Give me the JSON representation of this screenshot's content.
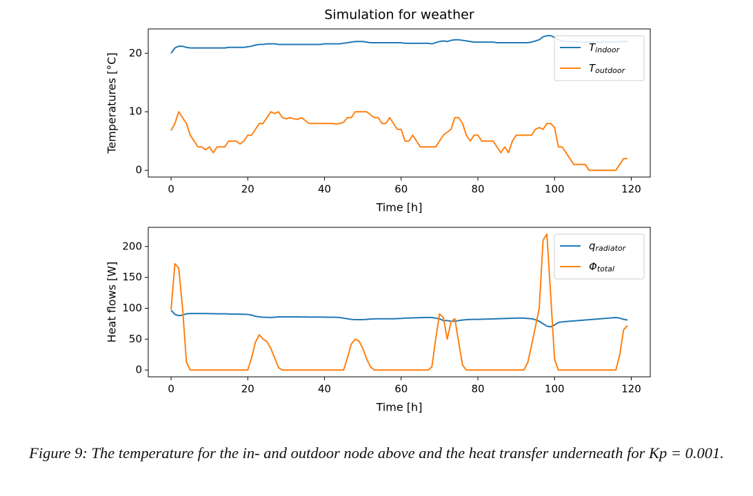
{
  "chart_data": [
    {
      "type": "line",
      "title": "Simulation for weather",
      "xlabel": "Time [h]",
      "ylabel": "Temperatures [°C]",
      "x": [
        0,
        1,
        2,
        3,
        4,
        5,
        6,
        7,
        8,
        9,
        10,
        11,
        12,
        13,
        14,
        15,
        16,
        17,
        18,
        19,
        20,
        21,
        22,
        23,
        24,
        25,
        26,
        27,
        28,
        29,
        30,
        31,
        32,
        33,
        34,
        35,
        36,
        37,
        38,
        39,
        40,
        41,
        42,
        43,
        44,
        45,
        46,
        47,
        48,
        49,
        50,
        51,
        52,
        53,
        54,
        55,
        56,
        57,
        58,
        59,
        60,
        61,
        62,
        63,
        64,
        65,
        66,
        67,
        68,
        69,
        70,
        71,
        72,
        73,
        74,
        75,
        76,
        77,
        78,
        79,
        80,
        81,
        82,
        83,
        84,
        85,
        86,
        87,
        88,
        89,
        90,
        91,
        92,
        93,
        94,
        95,
        96,
        97,
        98,
        99,
        100,
        101,
        102,
        103,
        104,
        105,
        106,
        107,
        108,
        109,
        110,
        111,
        112,
        113,
        114,
        115,
        116,
        117,
        118,
        119
      ],
      "series": [
        {
          "name": "T",
          "subscript": "indoor",
          "color": "#1f77b4",
          "values": [
            20.0,
            20.9,
            21.2,
            21.2,
            21.0,
            20.9,
            20.9,
            20.9,
            20.9,
            20.9,
            20.9,
            20.9,
            20.9,
            20.9,
            20.9,
            21.0,
            21.0,
            21.0,
            21.0,
            21.0,
            21.1,
            21.2,
            21.4,
            21.5,
            21.5,
            21.6,
            21.6,
            21.6,
            21.5,
            21.5,
            21.5,
            21.5,
            21.5,
            21.5,
            21.5,
            21.5,
            21.5,
            21.5,
            21.5,
            21.5,
            21.6,
            21.6,
            21.6,
            21.6,
            21.6,
            21.7,
            21.8,
            21.9,
            22.0,
            22.0,
            22.0,
            21.9,
            21.8,
            21.8,
            21.8,
            21.8,
            21.8,
            21.8,
            21.8,
            21.8,
            21.8,
            21.7,
            21.7,
            21.7,
            21.7,
            21.7,
            21.7,
            21.7,
            21.6,
            21.8,
            22.0,
            22.1,
            22.0,
            22.2,
            22.3,
            22.3,
            22.2,
            22.1,
            22.0,
            21.9,
            21.9,
            21.9,
            21.9,
            21.9,
            21.9,
            21.8,
            21.8,
            21.8,
            21.8,
            21.8,
            21.8,
            21.8,
            21.8,
            21.8,
            21.9,
            22.1,
            22.3,
            22.8,
            23.0,
            23.0,
            22.7,
            22.3,
            22.1,
            22.0,
            22.0,
            22.0,
            21.9,
            21.9,
            21.9,
            21.9,
            21.9,
            21.9,
            21.9,
            21.9,
            21.9,
            21.9,
            21.9,
            22.0,
            22.0,
            22.0
          ]
        },
        {
          "name": "T",
          "subscript": "outdoor",
          "color": "#ff7f0e",
          "values": [
            6.8,
            8,
            10,
            9,
            8,
            6,
            5,
            4,
            4,
            3.5,
            4,
            3,
            4,
            4,
            4,
            5,
            5,
            5,
            4.5,
            5,
            6,
            6,
            7,
            8,
            8,
            9,
            10,
            9.7,
            10,
            9,
            8.8,
            9,
            8.8,
            8.7,
            9,
            8.5,
            8,
            8,
            8,
            8,
            8,
            8,
            8,
            7.9,
            8,
            8.2,
            9,
            9,
            10,
            10,
            10,
            10,
            9.5,
            9,
            9,
            8,
            8,
            9,
            8,
            7,
            7,
            5,
            5,
            6,
            5,
            4,
            4,
            4,
            4,
            4,
            5,
            6,
            6.5,
            7,
            9,
            9,
            8,
            6,
            5,
            6,
            6,
            5,
            5,
            5,
            5,
            4,
            3,
            4,
            3,
            5,
            6,
            6,
            6,
            6,
            6,
            7,
            7.3,
            7,
            8,
            8,
            7.3,
            4,
            4,
            3,
            2,
            1,
            1,
            1,
            1,
            0,
            0,
            0,
            0,
            0,
            0,
            0,
            0,
            1,
            2,
            2
          ]
        }
      ],
      "xlim": [
        -5.95,
        124.95
      ],
      "ylim": [
        -1.15,
        24.15
      ],
      "xticks": [
        0,
        20,
        40,
        60,
        80,
        100,
        120
      ],
      "yticks": [
        0,
        10,
        20
      ],
      "legend": "upper right"
    },
    {
      "type": "line",
      "xlabel": "Time [h]",
      "ylabel": "Heat flows [W]",
      "x": [
        0,
        1,
        2,
        3,
        4,
        5,
        6,
        7,
        8,
        9,
        10,
        11,
        12,
        13,
        14,
        15,
        16,
        17,
        18,
        19,
        20,
        21,
        22,
        23,
        24,
        25,
        26,
        27,
        28,
        29,
        30,
        31,
        32,
        33,
        34,
        35,
        36,
        37,
        38,
        39,
        40,
        41,
        42,
        43,
        44,
        45,
        46,
        47,
        48,
        49,
        50,
        51,
        52,
        53,
        54,
        55,
        56,
        57,
        58,
        59,
        60,
        61,
        62,
        63,
        64,
        65,
        66,
        67,
        68,
        69,
        70,
        71,
        72,
        73,
        74,
        75,
        76,
        77,
        78,
        79,
        80,
        81,
        82,
        83,
        84,
        85,
        86,
        87,
        88,
        89,
        90,
        91,
        92,
        93,
        94,
        95,
        96,
        97,
        98,
        99,
        100,
        101,
        102,
        103,
        104,
        105,
        106,
        107,
        108,
        109,
        110,
        111,
        112,
        113,
        114,
        115,
        116,
        117,
        118,
        119
      ],
      "series": [
        {
          "name": "q",
          "subscript": "radiator",
          "color": "#1f77b4",
          "values": [
            97,
            90,
            88,
            89,
            91,
            91.5,
            91.5,
            91.5,
            91.5,
            91.4,
            91.3,
            91.2,
            91.1,
            91,
            91,
            90.8,
            90.6,
            90.5,
            90.3,
            90.2,
            90,
            89,
            87,
            86,
            85.5,
            85.3,
            85,
            85.5,
            86,
            86,
            86,
            86,
            86,
            86,
            85.9,
            85.9,
            85.8,
            85.8,
            85.7,
            85.7,
            85.6,
            85.5,
            85.4,
            85.3,
            85,
            84,
            83,
            82,
            81.5,
            81.5,
            81.5,
            82,
            82.5,
            82.8,
            83,
            83,
            83,
            83,
            83,
            83.3,
            83.5,
            84,
            84.2,
            84.4,
            84.6,
            84.8,
            85,
            85,
            85,
            84,
            83,
            80,
            80,
            79,
            79,
            80,
            81,
            81.5,
            81.8,
            82,
            82,
            82.2,
            82.4,
            82.6,
            82.8,
            83,
            83.2,
            83.4,
            83.6,
            83.8,
            84,
            84,
            84,
            83.5,
            83,
            81.5,
            79,
            75,
            71,
            70,
            73,
            77,
            78,
            78.5,
            79,
            79.5,
            80,
            80.5,
            81,
            81.5,
            82,
            82.5,
            83,
            83.5,
            84,
            84.5,
            85,
            84,
            82,
            81
          ]
        },
        {
          "name": "Φ",
          "subscript": "total",
          "color": "#ff7f0e",
          "values": [
            98,
            172,
            165,
            100,
            13,
            0,
            0,
            0,
            0,
            0,
            0,
            0,
            0,
            0,
            0,
            0,
            0,
            0,
            0,
            0,
            0,
            20,
            45,
            57,
            50,
            46,
            35,
            20,
            4,
            0,
            0,
            0,
            0,
            0,
            0,
            0,
            0,
            0,
            0,
            0,
            0,
            0,
            0,
            0,
            0,
            0,
            20,
            42,
            50,
            47,
            35,
            18,
            5,
            0,
            0,
            0,
            0,
            0,
            0,
            0,
            0,
            0,
            0,
            0,
            0,
            0,
            0,
            0,
            5,
            50,
            91,
            85,
            50,
            78,
            83,
            45,
            8,
            0,
            0,
            0,
            0,
            0,
            0,
            0,
            0,
            0,
            0,
            0,
            0,
            0,
            0,
            0,
            0,
            12,
            40,
            70,
            100,
            210,
            220,
            120,
            17,
            0,
            0,
            0,
            0,
            0,
            0,
            0,
            0,
            0,
            0,
            0,
            0,
            0,
            0,
            0,
            0,
            25,
            65,
            72
          ]
        }
      ],
      "xlim": [
        -5.95,
        124.95
      ],
      "ylim": [
        -11,
        231
      ],
      "xticks": [
        0,
        20,
        40,
        60,
        80,
        100,
        120
      ],
      "yticks": [
        0,
        50,
        100,
        150,
        200
      ],
      "legend": "upper right"
    }
  ],
  "caption": "Figure 9: The temperature for the in- and outdoor node above and the heat transfer underneath for Kp = 0.001."
}
